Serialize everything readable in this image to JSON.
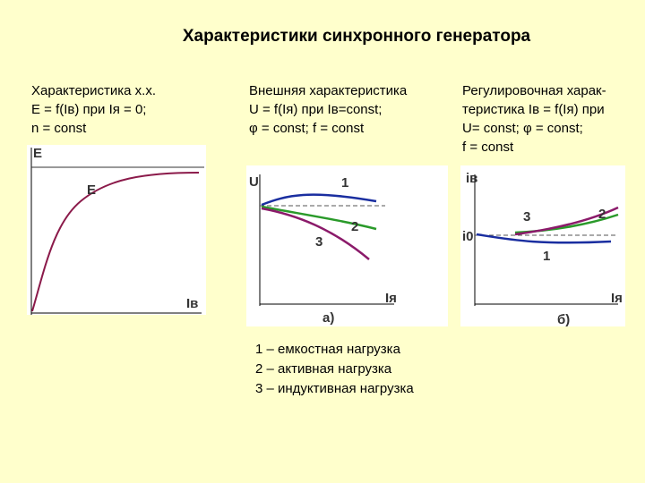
{
  "title": "Характеристики синхронного генератора",
  "columns": [
    {
      "lines": [
        "Характеристика х.х.",
        "E = f(Iв) при Iя = 0;",
        "n = const"
      ]
    },
    {
      "lines": [
        "Внешняя характеристика",
        "U = f(Iя) при Iв=const;",
        "φ = const; f = const"
      ]
    },
    {
      "lines": [
        "Регулировочная харак-",
        "теристика Iв = f(Iя) при",
        "U= const; φ = const;",
        "f = const"
      ]
    }
  ],
  "chart1": {
    "y_axis": "E",
    "curve_label": "E",
    "x_axis": "Iв"
  },
  "chart2": {
    "y_axis": "U",
    "x_axis": "Iя",
    "curve_labels": [
      "1",
      "2",
      "3"
    ],
    "caption": "а)"
  },
  "chart3": {
    "y_axis": "iв",
    "level_label": "i0",
    "x_axis": "Iя",
    "curve_labels": [
      "1",
      "2",
      "3"
    ],
    "caption": "б)"
  },
  "legend": [
    "1 – емкостная нагрузка",
    "2 – активная нагрузка",
    "3 – индуктивная нагрузка"
  ]
}
